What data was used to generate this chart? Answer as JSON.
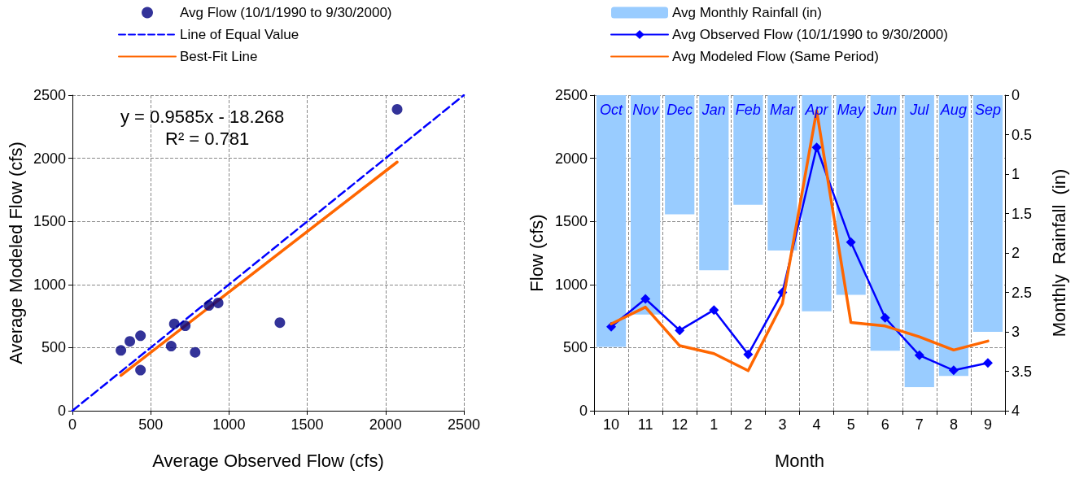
{
  "chart_data": [
    {
      "type": "scatter",
      "xlabel": "Average Observed Flow (cfs)",
      "ylabel": "Average Modeled Flow (cfs)",
      "xlim": [
        0,
        2500
      ],
      "xticks": [
        0,
        500,
        1000,
        1500,
        2000,
        2500
      ],
      "ylim": [
        0,
        2500
      ],
      "yticks": [
        0,
        500,
        1000,
        1500,
        2000,
        2500
      ],
      "grid": true,
      "legend": "top",
      "annotations": [
        "y = 0.9585x - 18.268",
        "R² = 0.781"
      ],
      "series": [
        {
          "name": "Avg Flow (10/1/1990 to 9/30/2000)",
          "color": "#000080",
          "marker": "circle",
          "x": [
            310,
            367,
            435,
            435,
            631,
            651,
            721,
            784,
            872,
            931,
            1325,
            2074
          ],
          "values": [
            478,
            550,
            594,
            322,
            512,
            688,
            673,
            463,
            834,
            854,
            698,
            2388
          ]
        },
        {
          "name": "Line of Equal Value",
          "type": "line",
          "color": "#0000ff",
          "marker": "none",
          "line_style": "dashed",
          "x": [
            0,
            2500
          ],
          "values": [
            0,
            2500
          ]
        },
        {
          "name": "Best-Fit Line",
          "type": "line",
          "color": "#ff6600",
          "marker": "none",
          "line_style": "solid",
          "x": [
            310,
            2074
          ],
          "values": [
            279,
            1970
          ]
        }
      ]
    },
    {
      "type": "line",
      "xlabel": "Month",
      "ylabel": "Flow (cfs)",
      "y2label": "Monthly  Rainfall  (in)",
      "categories": [
        "10",
        "11",
        "12",
        "1",
        "2",
        "3",
        "4",
        "5",
        "6",
        "7",
        "8",
        "9"
      ],
      "ylim": [
        0,
        2500
      ],
      "yticks": [
        0,
        500,
        1000,
        1500,
        2000,
        2500
      ],
      "y2lim": [
        4,
        0
      ],
      "y2ticks": [
        0,
        0.5,
        1,
        1.5,
        2,
        2.5,
        3,
        3.5,
        4
      ],
      "grid": true,
      "legend": "top",
      "series": [
        {
          "name": "Avg Monthly Rainfall (in)",
          "type": "bar",
          "axis": "y2",
          "color": "#99ccff",
          "values": [
            3.19,
            2.78,
            1.51,
            2.22,
            1.39,
            1.97,
            2.74,
            2.53,
            3.24,
            3.7,
            3.56,
            3.0
          ],
          "value_labels": [
            "Oct",
            "Nov",
            "Dec",
            "Jan",
            "Feb",
            "Mar",
            "Apr",
            "May",
            "Jun",
            "Jul",
            "Aug",
            "Sep"
          ]
        },
        {
          "name": "Avg Observed Flow (10/1/1990 to 9/30/2000)",
          "color": "#0000ff",
          "marker": "diamond",
          "values": [
            665,
            886,
            637,
            798,
            447,
            937,
            2086,
            1336,
            736,
            439,
            320,
            379
          ]
        },
        {
          "name": "Avg Modeled Flow (Same Period)",
          "color": "#ff6600",
          "marker": "none",
          "values": [
            688,
            821,
            515,
            453,
            317,
            849,
            2378,
            699,
            671,
            586,
            481,
            552
          ]
        }
      ]
    }
  ]
}
